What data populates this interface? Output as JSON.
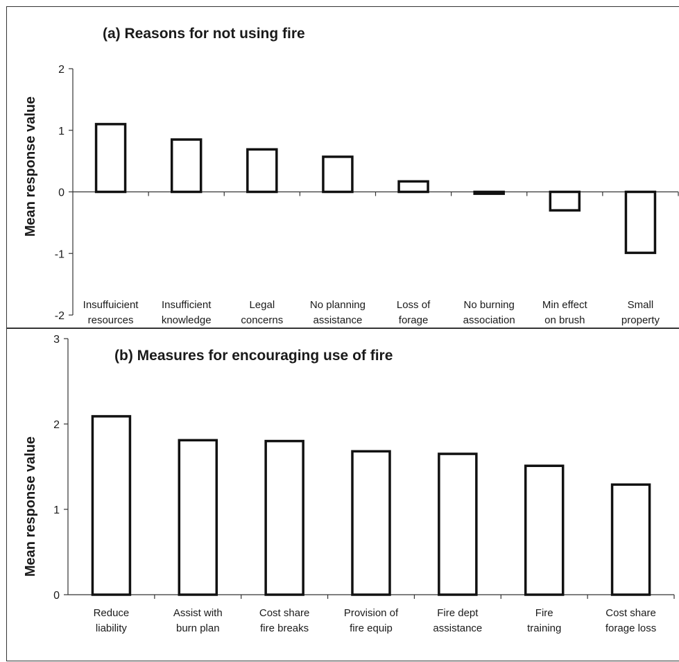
{
  "chart_data": [
    {
      "type": "bar",
      "title": "(a) Reasons for not using fire",
      "ylabel": "Mean response value",
      "xlabel": "",
      "ylim": [
        -2,
        2
      ],
      "yticks": [
        "2",
        "1",
        "0",
        "-1",
        "-2"
      ],
      "categories": [
        [
          "Insuffuicient",
          "resources"
        ],
        [
          "Insufficient",
          "knowledge"
        ],
        [
          "Legal",
          "concerns"
        ],
        [
          "No planning",
          "assistance"
        ],
        [
          "Loss of",
          "forage"
        ],
        [
          "No burning",
          "association"
        ],
        [
          "Min effect",
          "on brush"
        ],
        [
          "Small",
          "property"
        ]
      ],
      "values": [
        1.1,
        0.85,
        0.69,
        0.57,
        0.17,
        -0.03,
        -0.3,
        -0.99
      ],
      "grid": false
    },
    {
      "type": "bar",
      "title": "(b) Measures for encouraging use of fire",
      "ylabel": "Mean response value",
      "xlabel": "",
      "ylim": [
        0,
        3
      ],
      "yticks": [
        "3",
        "2",
        "1",
        "0"
      ],
      "categories": [
        [
          "Reduce",
          "liability"
        ],
        [
          "Assist with",
          "burn plan"
        ],
        [
          "Cost share",
          "fire breaks"
        ],
        [
          "Provision of",
          "fire equip"
        ],
        [
          "Fire dept",
          "assistance"
        ],
        [
          "Fire",
          "training"
        ],
        [
          "Cost share",
          "forage loss"
        ]
      ],
      "values": [
        2.09,
        1.81,
        1.8,
        1.68,
        1.65,
        1.51,
        1.29
      ],
      "grid": false
    }
  ]
}
